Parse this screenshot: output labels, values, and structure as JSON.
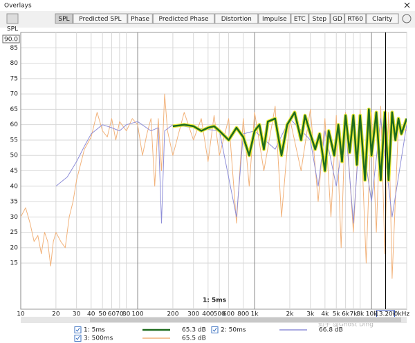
{
  "window": {
    "title": "Overlays",
    "y_max_input": "90.0",
    "watermark": "知乎 @Ghost Ding"
  },
  "tabs": [
    "SPL",
    "Predicted SPL",
    "Phase",
    "Predicted Phase",
    "Distortion",
    "Impulse",
    "ETC",
    "Step",
    "GD",
    "RT60",
    "Clarity"
  ],
  "chart_data": {
    "type": "line",
    "y_axis_label": "SPL",
    "annotation": "1: 5ms",
    "xscale": "log",
    "grid": true,
    "xlim": [
      10,
      20000
    ],
    "ylim": [
      0,
      90
    ],
    "xticks": [
      10,
      20,
      30,
      40,
      50,
      60,
      70,
      80,
      100,
      200,
      300,
      400,
      500,
      600,
      800,
      {
        "value": 1000,
        "label": "1k"
      },
      {
        "value": 2000,
        "label": "2k"
      },
      {
        "value": 3000,
        "label": "3k"
      },
      {
        "value": 4000,
        "label": "4k"
      },
      {
        "value": 5000,
        "label": "5k"
      },
      {
        "value": 6000,
        "label": "6k"
      },
      {
        "value": 7000,
        "label": "7k"
      },
      {
        "value": 8000,
        "label": "8k"
      },
      {
        "value": 10000,
        "label": "10k"
      },
      {
        "value": 20000,
        "label": "20kHz"
      }
    ],
    "yticks": [
      15,
      20,
      25,
      30,
      35,
      40,
      45,
      50,
      55,
      60,
      65,
      70,
      75,
      80,
      85
    ],
    "cursor": {
      "value": 13200,
      "label": "13.20k"
    },
    "series": [
      {
        "name": "3: 500ms",
        "color": "#f2b27a",
        "level": {
          "value": 65.5,
          "label": "65.5 dB"
        },
        "x": [
          10,
          11,
          12,
          13,
          14,
          15,
          16,
          17,
          18,
          19,
          20,
          22,
          24,
          26,
          28,
          30,
          35,
          40,
          45,
          50,
          55,
          60,
          65,
          70,
          80,
          90,
          100,
          110,
          120,
          130,
          140,
          150,
          160,
          170,
          180,
          200,
          250,
          300,
          350,
          400,
          450,
          500,
          600,
          700,
          800,
          900,
          1000,
          1200,
          1500,
          1700,
          2000,
          2500,
          3000,
          3500,
          4000,
          4500,
          5000,
          5500,
          6000,
          7000,
          8000,
          9000,
          10000,
          11000,
          12000,
          13000,
          14000,
          15000,
          17000,
          20000
        ],
        "values": [
          30,
          33,
          28,
          22,
          24,
          18,
          25,
          22,
          14,
          22,
          25,
          22,
          20,
          30,
          35,
          42,
          52,
          56,
          64,
          58,
          56,
          62,
          55,
          61,
          58,
          62,
          60,
          50,
          57,
          62,
          40,
          62,
          45,
          70,
          58,
          50,
          64,
          55,
          62,
          48,
          63,
          50,
          62,
          28,
          62,
          40,
          64,
          45,
          66,
          30,
          62,
          45,
          65,
          35,
          62,
          30,
          63,
          20,
          64,
          25,
          65,
          15,
          64,
          25,
          66,
          18,
          64,
          10,
          60,
          58
        ]
      },
      {
        "name": "2: 50ms",
        "color": "#8e8ed8",
        "level": {
          "value": 66.8,
          "label": "66.8 dB"
        },
        "x": [
          20,
          25,
          30,
          35,
          40,
          50,
          60,
          70,
          80,
          100,
          130,
          150,
          160,
          170,
          200,
          300,
          500,
          700,
          800,
          1000,
          1500,
          2000,
          3000,
          3500,
          4000,
          5000,
          6000,
          7000,
          8000,
          10000,
          12000,
          15000,
          20000
        ],
        "values": [
          40,
          43,
          48,
          53,
          57,
          60,
          59,
          58,
          60,
          61,
          58,
          59,
          28,
          58,
          60,
          59,
          58,
          30,
          57,
          58,
          52,
          62,
          55,
          40,
          58,
          40,
          60,
          28,
          60,
          35,
          62,
          30,
          60
        ]
      },
      {
        "name": "1: 5ms",
        "color": "#1d6b1d",
        "level": {
          "value": 65.3,
          "label": "65.3 dB"
        },
        "x": [
          200,
          250,
          300,
          350,
          400,
          450,
          500,
          600,
          700,
          800,
          900,
          1000,
          1100,
          1200,
          1300,
          1500,
          1700,
          1900,
          2200,
          2500,
          2700,
          3000,
          3300,
          3600,
          4000,
          4300,
          4800,
          5200,
          5600,
          6000,
          6500,
          7000,
          7500,
          8000,
          8800,
          9500,
          10000,
          11000,
          12000,
          13000,
          14000,
          15000,
          16000,
          17000,
          18000,
          20000
        ],
        "values": [
          59.5,
          60,
          59.5,
          58,
          59,
          59.5,
          58,
          55,
          59,
          56,
          50,
          58,
          60,
          52,
          61,
          62,
          50,
          60,
          64,
          55,
          63,
          57,
          52,
          57,
          45,
          58,
          50,
          60,
          48,
          63,
          51,
          63,
          47,
          63,
          42,
          65,
          50,
          64,
          42,
          64,
          42,
          64,
          55,
          62,
          57,
          62
        ]
      }
    ]
  }
}
